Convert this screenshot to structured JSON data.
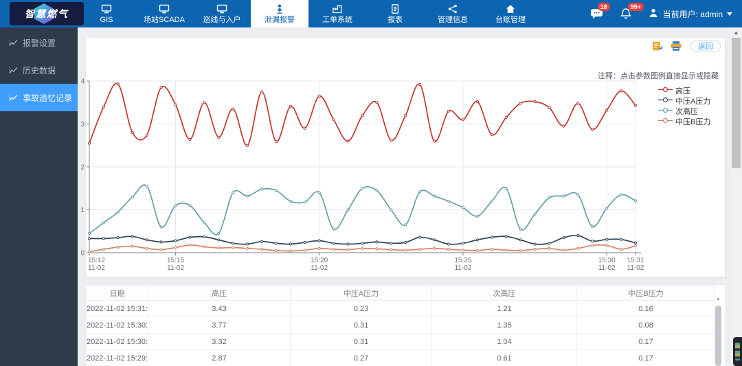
{
  "topbar": {
    "logo_text": "智慧燃气",
    "nav_items": [
      {
        "label": "GIS",
        "icon": "monitor-icon",
        "active": false
      },
      {
        "label": "场站SCADA",
        "icon": "monitor-icon",
        "active": false
      },
      {
        "label": "巡线与入户",
        "icon": "monitor-icon",
        "active": false
      },
      {
        "label": "泄漏报警",
        "icon": "person-pin-icon",
        "active": true
      },
      {
        "label": "工单系统",
        "icon": "factory-icon",
        "active": false
      },
      {
        "label": "报表",
        "icon": "document-icon",
        "active": false
      },
      {
        "label": "管理信息",
        "icon": "share-icon",
        "active": false
      },
      {
        "label": "台账管理",
        "icon": "home-icon",
        "active": false
      }
    ],
    "message_badge": "18",
    "notification_badge": "99+",
    "user_label": "当前用户: admin"
  },
  "sidebar": {
    "items": [
      {
        "label": "报警设置",
        "icon": "trend-icon",
        "active": false
      },
      {
        "label": "历史数据",
        "icon": "trend-icon",
        "active": false
      },
      {
        "label": "事故追忆记录",
        "icon": "trend-icon",
        "active": true
      }
    ]
  },
  "toolbar": {
    "back_label": "返回",
    "icons": [
      "export-icon",
      "print-icon"
    ]
  },
  "chart_note": "注释：点击参数图例直接显示或隐藏",
  "chart_data": {
    "type": "line",
    "title": "",
    "xlabel": "",
    "ylabel": "",
    "ylim": [
      0,
      4
    ],
    "y_ticks": [
      0,
      1,
      2,
      3,
      4
    ],
    "grid": true,
    "legend_position": "right",
    "x": [
      "15:12:00",
      "15:12:30",
      "15:13:00",
      "15:13:30",
      "15:14:00",
      "15:14:30",
      "15:15:00",
      "15:15:30",
      "15:16:00",
      "15:16:30",
      "15:17:00",
      "15:17:30",
      "15:18:00",
      "15:18:30",
      "15:19:00",
      "15:19:30",
      "15:20:00",
      "15:20:30",
      "15:21:00",
      "15:21:30",
      "15:22:00",
      "15:22:30",
      "15:23:00",
      "15:23:30",
      "15:24:00",
      "15:24:30",
      "15:25:00",
      "15:25:30",
      "15:26:00",
      "15:26:30",
      "15:27:00",
      "15:27:30",
      "15:28:00",
      "15:28:30",
      "15:29:00",
      "15:29:30",
      "15:30:00",
      "15:30:30",
      "15:31:00"
    ],
    "x_tick_indices": [
      0,
      6,
      16,
      26,
      36,
      38
    ],
    "x_tick_labels": [
      {
        "time": "15:12",
        "date": "11-02"
      },
      {
        "time": "15:15",
        "date": "11-02"
      },
      {
        "time": "15:20",
        "date": "11-02"
      },
      {
        "time": "15:25",
        "date": "11-02"
      },
      {
        "time": "15:30",
        "date": "11-02"
      },
      {
        "time": "15:31",
        "date": "11-02"
      }
    ],
    "series": [
      {
        "name": "高压",
        "color": "#c23531",
        "values": [
          2.55,
          3.4,
          3.93,
          2.8,
          2.74,
          3.85,
          3.45,
          2.64,
          3.5,
          2.69,
          3.35,
          2.5,
          3.75,
          2.59,
          3.41,
          2.9,
          3.65,
          3.1,
          2.6,
          3.2,
          3.5,
          2.62,
          3.2,
          3.92,
          2.6,
          3.3,
          3.1,
          3.52,
          2.75,
          3.15,
          3.48,
          3.52,
          3.38,
          2.95,
          3.48,
          2.87,
          3.32,
          3.77,
          3.43
        ]
      },
      {
        "name": "中压A压力",
        "color": "#2f4554",
        "values": [
          0.33,
          0.33,
          0.35,
          0.38,
          0.3,
          0.25,
          0.28,
          0.36,
          0.37,
          0.3,
          0.22,
          0.2,
          0.26,
          0.22,
          0.2,
          0.24,
          0.28,
          0.22,
          0.2,
          0.22,
          0.25,
          0.22,
          0.24,
          0.36,
          0.3,
          0.2,
          0.22,
          0.3,
          0.36,
          0.38,
          0.3,
          0.2,
          0.22,
          0.35,
          0.4,
          0.27,
          0.31,
          0.31,
          0.23
        ]
      },
      {
        "name": "次高压",
        "color": "#61a0a8",
        "values": [
          0.45,
          0.7,
          0.95,
          1.3,
          1.55,
          0.6,
          1.1,
          1.1,
          0.7,
          0.45,
          1.4,
          1.32,
          1.48,
          1.45,
          1.2,
          1.18,
          1.4,
          0.55,
          1.0,
          1.5,
          1.45,
          1.0,
          0.65,
          1.42,
          1.32,
          1.2,
          1.05,
          0.85,
          1.2,
          1.5,
          0.55,
          0.9,
          1.28,
          1.32,
          1.35,
          0.61,
          1.04,
          1.35,
          1.21
        ]
      },
      {
        "name": "中压B压力",
        "color": "#d48265",
        "values": [
          0.02,
          0.08,
          0.13,
          0.15,
          0.1,
          0.07,
          0.12,
          0.18,
          0.14,
          0.11,
          0.12,
          0.1,
          0.08,
          0.05,
          0.04,
          0.06,
          0.1,
          0.08,
          0.07,
          0.1,
          0.09,
          0.07,
          0.06,
          0.08,
          0.1,
          0.08,
          0.06,
          0.05,
          0.08,
          0.06,
          0.05,
          0.08,
          0.1,
          0.06,
          0.1,
          0.17,
          0.17,
          0.08,
          0.16
        ]
      }
    ]
  },
  "table": {
    "headers": [
      "日期",
      "高压",
      "中压A压力",
      "次高压",
      "中压B压力"
    ],
    "rows": [
      [
        "2022-11-02 15:31:15",
        "3.43",
        "0.23",
        "1.21",
        "0.16"
      ],
      [
        "2022-11-02 15:30:45",
        "3.77",
        "0.31",
        "1.35",
        "0.08"
      ],
      [
        "2022-11-02 15:30:05",
        "3.32",
        "0.31",
        "1.04",
        "0.17"
      ],
      [
        "2022-11-02 15:29:39",
        "2.87",
        "0.27",
        "0.61",
        "0.17"
      ]
    ]
  },
  "colors": {
    "topbar": "#0d64b0",
    "sidebar_bg": "#2f3a4b",
    "sidebar_active": "#409eff",
    "badge": "#fa3e3e",
    "accent": "#409eff"
  }
}
